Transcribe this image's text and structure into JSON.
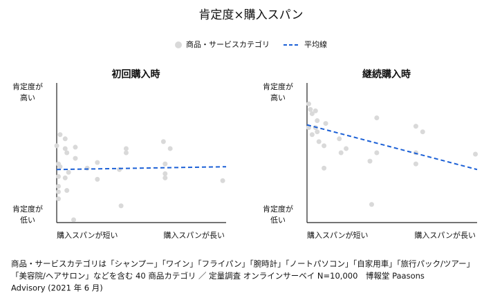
{
  "title": "肯定度×購入スパン",
  "footnote": [
    "商品・サービスカテゴリは「シャンプー」「ワイン」「フライパン」「腕時計」「ノートパソコン」「自家用車」「旅行パック/ツアー」",
    "「美容院/ヘアサロン」などを含む 40 商品カテゴリ ／ 定量調査 オンラインサーベイ N=10,000　博報堂 Paasons",
    "Advisory (2021 年 6 月)"
  ],
  "chart_data": [
    {
      "type": "scatter",
      "title": "初回購入時",
      "x_label_low": "購入スパンが短い",
      "x_label_high": "購入スパンが長い",
      "y_label_high": [
        "肯定度が",
        "高い"
      ],
      "y_label_low": [
        "肯定度が",
        "低い"
      ],
      "xlim": [
        0,
        100
      ],
      "ylim": [
        0,
        100
      ],
      "series": [
        {
          "name": "商品・サービスカテゴリ",
          "color": "#d9d9d9",
          "x": [
            0,
            2,
            1,
            2,
            5,
            5,
            6,
            1,
            1,
            1,
            1,
            5,
            7,
            11,
            11,
            10,
            18,
            24,
            24,
            37,
            41,
            41,
            38,
            63,
            64,
            64,
            64,
            67,
            98,
            6
          ],
          "values": [
            55,
            63,
            42,
            40,
            60,
            53,
            50,
            33,
            26,
            22,
            17,
            32,
            36,
            54,
            46,
            2,
            39,
            43,
            31,
            38,
            53,
            50,
            12,
            58,
            42,
            35,
            32,
            53,
            30,
            23
          ]
        },
        {
          "name": "平均線",
          "color": "#1a5fd6",
          "line_style": "dashed",
          "x": [
            0,
            100
          ],
          "values": [
            38,
            40
          ]
        }
      ]
    },
    {
      "type": "scatter",
      "title": "継続購入時",
      "x_label_low": "購入スパンが短い",
      "x_label_high": "購入スパンが長い",
      "y_label_high": [
        "肯定度が",
        "高い"
      ],
      "y_label_low": [
        "肯定度が",
        "低い"
      ],
      "xlim": [
        0,
        100
      ],
      "ylim": [
        0,
        100
      ],
      "series": [
        {
          "name": "商品・サービスカテゴリ",
          "color": "#d9d9d9",
          "x": [
            1,
            2,
            3,
            5,
            6,
            1,
            3,
            6,
            7,
            11,
            10,
            10,
            19,
            20,
            23,
            37,
            38,
            41,
            41,
            64,
            68,
            64,
            64,
            99,
            5
          ],
          "values": [
            85,
            81,
            78,
            80,
            73,
            68,
            63,
            65,
            58,
            71,
            55,
            39,
            60,
            50,
            53,
            44,
            13,
            75,
            50,
            69,
            65,
            50,
            42,
            49,
            68
          ]
        },
        {
          "name": "平均線",
          "color": "#1a5fd6",
          "line_style": "dashed",
          "x": [
            0,
            100
          ],
          "values": [
            70,
            38
          ]
        }
      ]
    }
  ]
}
